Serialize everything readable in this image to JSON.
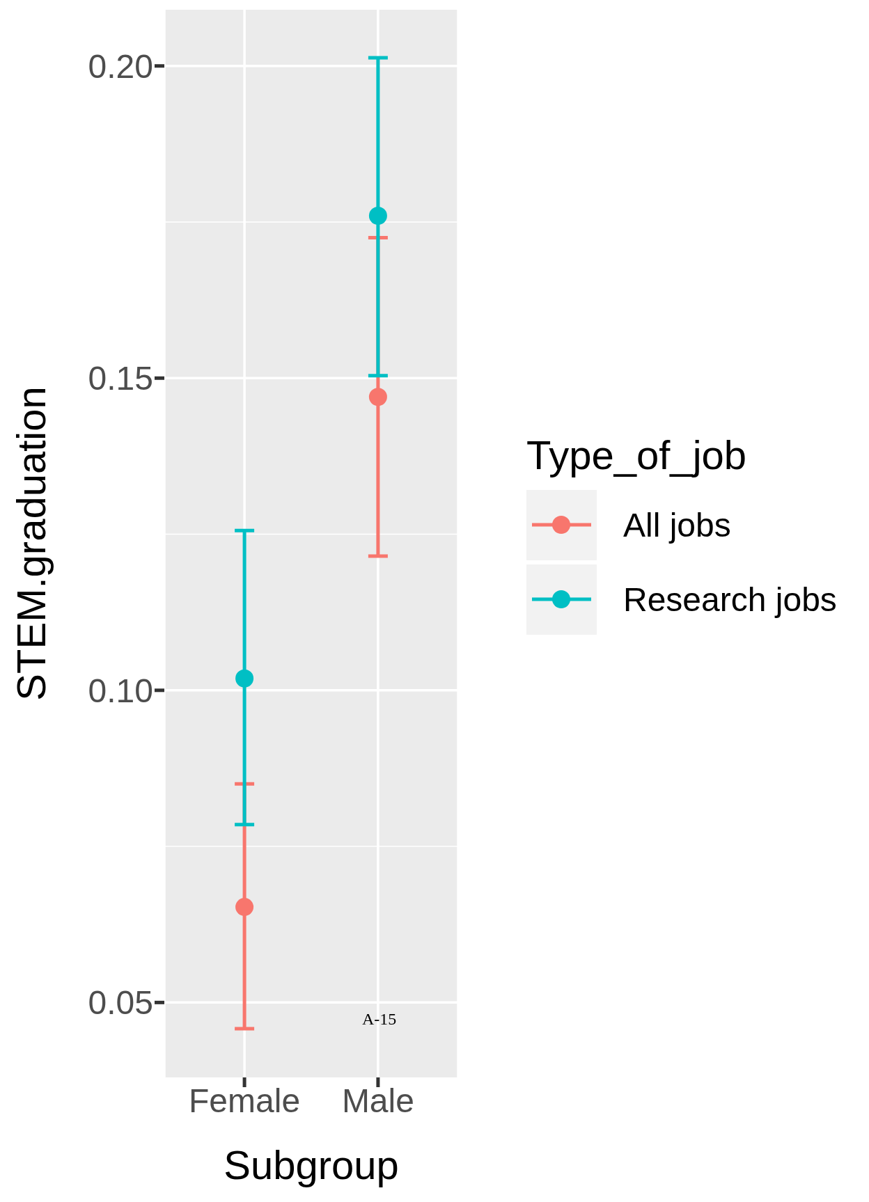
{
  "chart_data": {
    "type": "scatter",
    "xlabel": "Subgroup",
    "ylabel": "STEM.graduation",
    "legend_title": "Type_of_job",
    "categories": [
      "Female",
      "Male"
    ],
    "series": [
      {
        "name": "All jobs",
        "color": "#f8766d",
        "values": [
          0.0653,
          0.147
        ],
        "errors": [
          [
            0.0458,
            0.085
          ],
          [
            0.1215,
            0.1725
          ]
        ]
      },
      {
        "name": "Research jobs",
        "color": "#00bfc4",
        "values": [
          0.1019,
          0.176
        ],
        "errors": [
          [
            0.0785,
            0.1256
          ],
          [
            0.1504,
            0.2013
          ]
        ]
      }
    ],
    "ylim": [
      0.038,
      0.209
    ],
    "yticks": [
      {
        "value": 0.05,
        "label": "0.05"
      },
      {
        "value": 0.1,
        "label": "0.10"
      },
      {
        "value": 0.15,
        "label": "0.15"
      },
      {
        "value": 0.2,
        "label": "0.20"
      }
    ],
    "grid": true,
    "legend": "right",
    "marker": "circle",
    "annotations": [
      "A-15"
    ]
  }
}
